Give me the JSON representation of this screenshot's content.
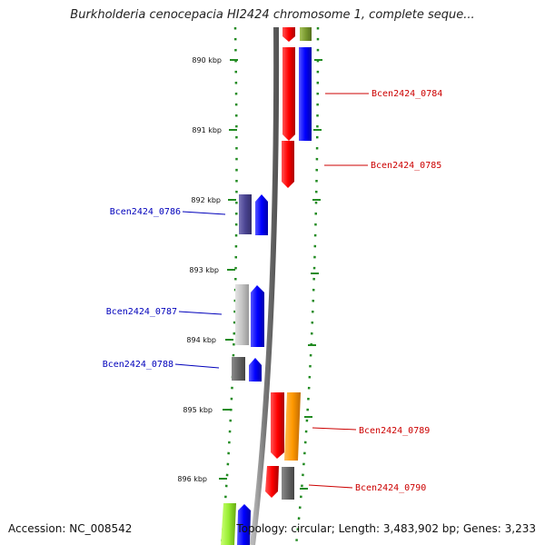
{
  "title": "Burkholderia cenocepacia HI2424 chromosome 1, complete seque...",
  "footer": {
    "accession": "Accession: NC_008542",
    "stats": "Topology: circular; Length: 3,483,902 bp; Genes: 3,233"
  },
  "colors": {
    "forward_label": "#cc0000",
    "reverse_label": "#0000bb",
    "tick": "#228b22",
    "backbone": "#8a8a8a"
  },
  "kbp_ticks": [
    "890 kbp",
    "891 kbp",
    "892 kbp",
    "893 kbp",
    "894 kbp",
    "895 kbp",
    "896 kbp"
  ],
  "gene_labels": [
    {
      "name": "Bcen2424_0784",
      "strand": "forward"
    },
    {
      "name": "Bcen2424_0785",
      "strand": "forward"
    },
    {
      "name": "Bcen2424_0786",
      "strand": "reverse"
    },
    {
      "name": "Bcen2424_0787",
      "strand": "reverse"
    },
    {
      "name": "Bcen2424_0788",
      "strand": "reverse"
    },
    {
      "name": "Bcen2424_0789",
      "strand": "forward"
    },
    {
      "name": "Bcen2424_0790",
      "strand": "forward"
    }
  ]
}
